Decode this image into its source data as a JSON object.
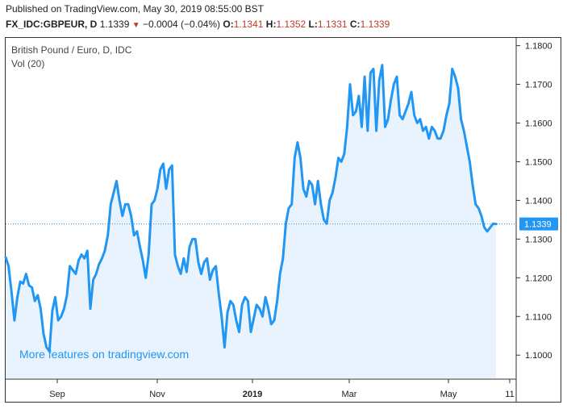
{
  "header": {
    "published": "Published on TradingView.com, May 30, 2019 08:55:00 BST",
    "symbol": "FX_IDC:GBPEUR, D",
    "last": "1.1339",
    "arrow": "▼",
    "change": "−0.0004 (−0.04%)",
    "o_label": "O:",
    "o_value": "1.1341",
    "h_label": "H:",
    "h_value": "1.1352",
    "l_label": "L:",
    "l_value": "1.1331",
    "c_label": "C:",
    "c_value": "1.1339"
  },
  "legend": {
    "title": "British Pound / Euro, D, IDC",
    "volume": "Vol (20)"
  },
  "promo": "More features on tradingview.com",
  "last_price_label": "1.1339",
  "colors": {
    "line": "#2196f3",
    "area": "#e9f3fd",
    "down": "#c0392b",
    "badge": "#2196f3",
    "dotted": "#2196f3"
  },
  "chart_data": {
    "type": "area",
    "title": "British Pound / Euro, D, IDC",
    "xlabel": "",
    "ylabel": "",
    "ylim": [
      1.094,
      1.182
    ],
    "y_ticks": [
      "1.1000",
      "1.1100",
      "1.1200",
      "1.1300",
      "1.1400",
      "1.1500",
      "1.1600",
      "1.1700",
      "1.1800"
    ],
    "x_ticks": [
      "Sep",
      "Nov",
      "2019",
      "Mar",
      "May",
      "11"
    ],
    "bold_x_tick": "2019",
    "last_value": 1.1339,
    "series": [
      {
        "values": [
          1.1253,
          1.123,
          1.1165,
          1.109,
          1.115,
          1.119,
          1.1185,
          1.121,
          1.118,
          1.1175,
          1.114,
          1.1155,
          1.112,
          1.1055,
          1.102,
          1.101,
          1.1115,
          1.115,
          1.109,
          1.11,
          1.112,
          1.1155,
          1.123,
          1.122,
          1.121,
          1.1245,
          1.126,
          1.125,
          1.127,
          1.112,
          1.1195,
          1.121,
          1.1235,
          1.125,
          1.127,
          1.131,
          1.139,
          1.142,
          1.145,
          1.14,
          1.136,
          1.139,
          1.139,
          1.136,
          1.131,
          1.132,
          1.128,
          1.1245,
          1.12,
          1.126,
          1.139,
          1.14,
          1.143,
          1.148,
          1.1495,
          1.143,
          1.148,
          1.149,
          1.126,
          1.123,
          1.121,
          1.125,
          1.1215,
          1.128,
          1.13,
          1.13,
          1.124,
          1.121,
          1.124,
          1.125,
          1.1195,
          1.122,
          1.123,
          1.116,
          1.11,
          1.102,
          1.111,
          1.114,
          1.113,
          1.109,
          1.106,
          1.113,
          1.115,
          1.114,
          1.106,
          1.1095,
          1.113,
          1.112,
          1.11,
          1.115,
          1.112,
          1.108,
          1.109,
          1.114,
          1.121,
          1.125,
          1.134,
          1.138,
          1.139,
          1.151,
          1.155,
          1.151,
          1.143,
          1.141,
          1.145,
          1.144,
          1.139,
          1.145,
          1.139,
          1.135,
          1.134,
          1.14,
          1.142,
          1.146,
          1.151,
          1.15,
          1.152,
          1.159,
          1.17,
          1.162,
          1.163,
          1.167,
          1.159,
          1.172,
          1.158,
          1.173,
          1.174,
          1.158,
          1.171,
          1.175,
          1.159,
          1.161,
          1.166,
          1.17,
          1.172,
          1.162,
          1.161,
          1.163,
          1.165,
          1.168,
          1.162,
          1.16,
          1.161,
          1.158,
          1.159,
          1.156,
          1.159,
          1.158,
          1.156,
          1.156,
          1.158,
          1.162,
          1.165,
          1.174,
          1.172,
          1.169,
          1.161,
          1.158,
          1.154,
          1.15,
          1.144,
          1.139,
          1.138,
          1.136,
          1.133,
          1.132,
          1.133,
          1.134,
          1.1339
        ]
      }
    ]
  }
}
